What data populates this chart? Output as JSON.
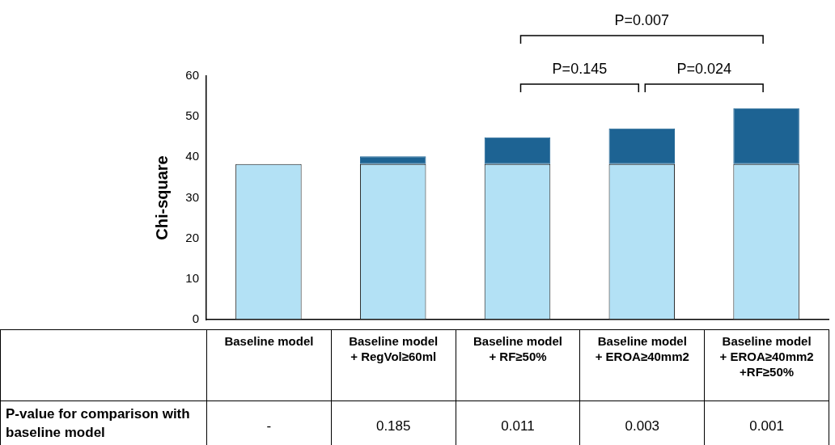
{
  "chart_data": {
    "type": "bar",
    "stacked": true,
    "ylabel": "Chi-square",
    "categories": [
      "Baseline model",
      "Baseline model\n+ RegVol≥60ml",
      "Baseline model\n+ RF≥50%",
      "Baseline model\n+ EROA≥40mm2",
      "Baseline model\n+ EROA≥40mm2\n+RF≥50%"
    ],
    "series": [
      {
        "color": "#b3e1f5",
        "values": [
          38.3,
          38.3,
          38.3,
          38.3,
          38.3
        ]
      },
      {
        "color": "#1d6393",
        "values": [
          null,
          1.9,
          6.6,
          8.8,
          13.8
        ]
      }
    ],
    "ylim": [
      0,
      60
    ],
    "yticks": [
      0,
      10,
      20,
      30,
      40,
      50,
      60
    ],
    "grid": false,
    "legend": false,
    "annotations": [
      "P=0.145",
      "P=0.024",
      "P=0.007",
      "P-value for comparison with baseline model",
      "-",
      "0.185",
      "0.011",
      "0.003",
      "0.001"
    ]
  }
}
